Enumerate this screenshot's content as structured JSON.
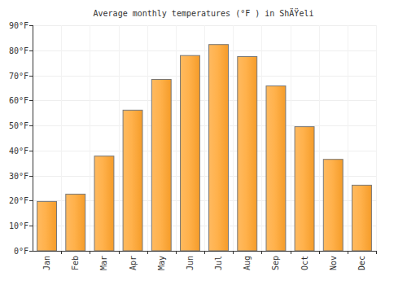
{
  "chart_data": {
    "type": "bar",
    "title": "Average monthly temperatures (°F ) in ShÄŸeli",
    "categories": [
      "Jan",
      "Feb",
      "Mar",
      "Apr",
      "May",
      "Jun",
      "Jul",
      "Aug",
      "Sep",
      "Oct",
      "Nov",
      "Dec"
    ],
    "values": [
      19.7,
      22.6,
      37.8,
      56.1,
      68.4,
      77.9,
      82.3,
      77.5,
      65.8,
      49.5,
      36.5,
      26.2
    ],
    "color": "#ffa32b",
    "ylim": [
      0,
      90
    ],
    "yticks": [
      {
        "value": 0,
        "label": "0°F"
      },
      {
        "value": 10,
        "label": "10°F"
      },
      {
        "value": 20,
        "label": "20°F"
      },
      {
        "value": 30,
        "label": "30°F"
      },
      {
        "value": 40,
        "label": "40°F"
      },
      {
        "value": 50,
        "label": "50°F"
      },
      {
        "value": 60,
        "label": "60°F"
      },
      {
        "value": 70,
        "label": "70°F"
      },
      {
        "value": 80,
        "label": "80°F"
      },
      {
        "value": 90,
        "label": "90°F"
      }
    ],
    "grid": true
  }
}
